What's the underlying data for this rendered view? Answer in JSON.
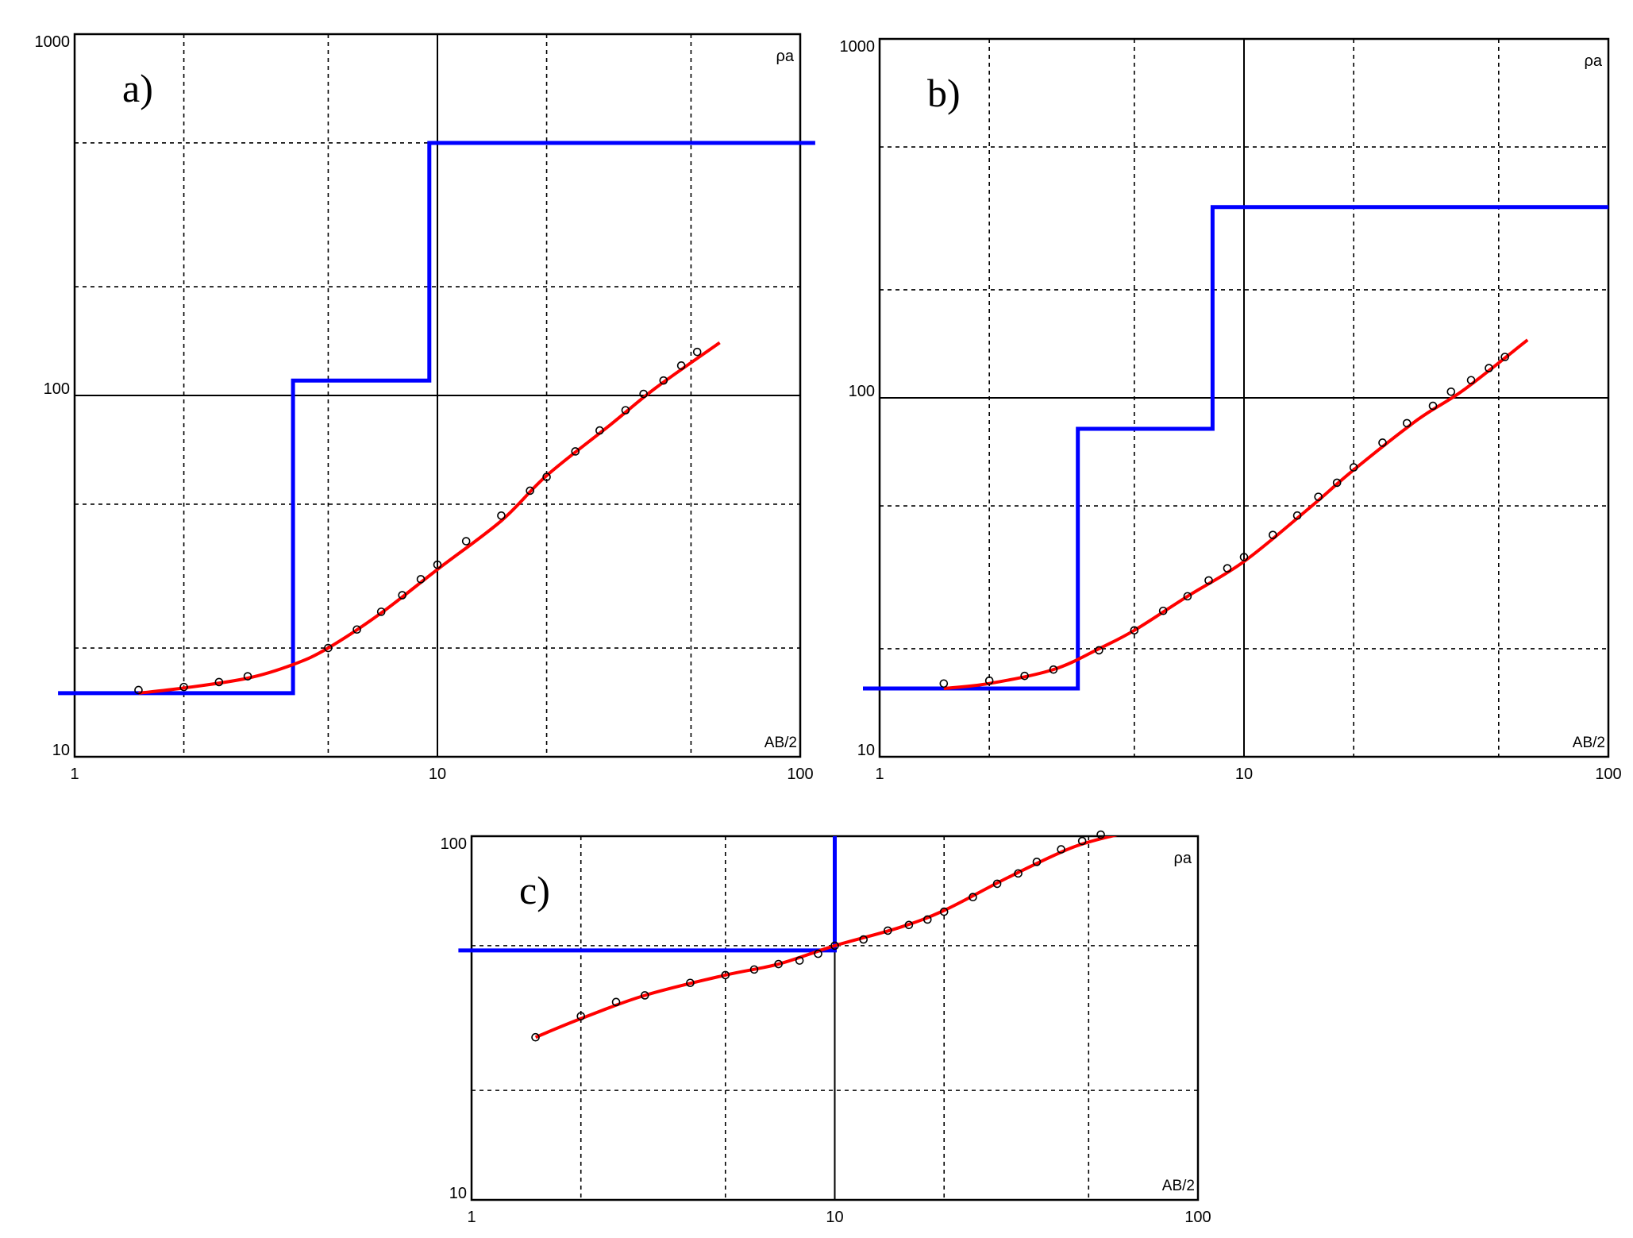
{
  "chart_data": [
    {
      "type": "line",
      "panel_label": "a)",
      "xlabel": "AB/2",
      "ylabel": "ρa",
      "x_scale": "log",
      "y_scale": "log",
      "xlim": [
        1,
        100
      ],
      "ylim": [
        10,
        1000
      ],
      "x_ticks": [
        "1",
        "10",
        "100"
      ],
      "y_ticks": [
        "10",
        "100",
        "1000"
      ],
      "grid": true,
      "model": {
        "name": "",
        "x": [
          0.9,
          4.0,
          4.0,
          9.5,
          9.5,
          110
        ],
        "y": [
          15,
          15,
          110,
          110,
          500,
          500
        ],
        "color": "#0000ff"
      },
      "fit": {
        "x": [
          1.5,
          2,
          3,
          4,
          5,
          7,
          10,
          15,
          20,
          30,
          40,
          60
        ],
        "y": [
          15,
          15.5,
          16.5,
          18,
          20,
          25,
          33,
          45,
          60,
          83,
          105,
          140
        ],
        "color": "#ff0000"
      },
      "observed": {
        "x": [
          1.5,
          2,
          2.5,
          3,
          5,
          6,
          7,
          8,
          9,
          10,
          12,
          15,
          18,
          20,
          24,
          28,
          33,
          37,
          42,
          47,
          52
        ],
        "y": [
          15.3,
          15.6,
          16.1,
          16.7,
          20,
          22.5,
          25.2,
          28,
          31,
          34,
          39.5,
          46.5,
          54.5,
          59.5,
          70,
          80,
          91,
          101,
          110,
          121,
          132
        ]
      }
    },
    {
      "type": "line",
      "panel_label": "b)",
      "xlabel": "AB/2",
      "ylabel": "ρa",
      "x_scale": "log",
      "y_scale": "log",
      "xlim": [
        1,
        100
      ],
      "ylim": [
        10,
        1000
      ],
      "x_ticks": [
        "1",
        "10",
        "100"
      ],
      "y_ticks": [
        "10",
        "100",
        "1000"
      ],
      "grid": true,
      "model": {
        "name": "",
        "x": [
          0.9,
          3.5,
          3.5,
          8.2,
          8.2,
          105
        ],
        "y": [
          15.5,
          15.5,
          82,
          82,
          340,
          340
        ],
        "color": "#0000ff"
      },
      "fit": {
        "x": [
          1.5,
          2,
          3,
          4,
          5,
          7,
          10,
          15,
          20,
          30,
          40,
          60
        ],
        "y": [
          15.5,
          16,
          17.5,
          20,
          22.5,
          28,
          35,
          49,
          63,
          87,
          105,
          145
        ],
        "color": "#ff0000"
      },
      "observed": {
        "x": [
          1.5,
          2,
          2.5,
          3,
          4,
          5,
          6,
          7,
          8,
          9,
          10,
          12,
          14,
          16,
          18,
          20,
          24,
          28,
          33,
          37,
          42,
          47,
          52
        ],
        "y": [
          16,
          16.3,
          16.8,
          17.5,
          19.8,
          22.5,
          25.5,
          28,
          31,
          33.5,
          36,
          41.5,
          47,
          53,
          58,
          64,
          75,
          85,
          95,
          104,
          112,
          121,
          130
        ]
      }
    },
    {
      "type": "line",
      "panel_label": "c)",
      "xlabel": "AB/2",
      "ylabel": "ρa",
      "x_scale": "log",
      "y_scale": "log",
      "xlim": [
        1,
        100
      ],
      "ylim": [
        10,
        100
      ],
      "x_ticks": [
        "1",
        "10",
        "100"
      ],
      "y_ticks": [
        "10",
        "100"
      ],
      "grid": true,
      "model": {
        "name": "",
        "x": [
          0.92,
          10,
          10
        ],
        "y": [
          48.5,
          48.5,
          105
        ],
        "color": "#0000ff"
      },
      "fit": {
        "x": [
          1.5,
          2,
          3,
          5,
          7,
          10,
          15,
          20,
          30,
          45,
          60
        ],
        "y": [
          28,
          31.5,
          36.5,
          41.5,
          44.5,
          50,
          56,
          62.5,
          77,
          93,
          101
        ],
        "color": "#ff0000"
      },
      "observed": {
        "x": [
          1.5,
          2,
          2.5,
          3,
          4,
          5,
          6,
          7,
          8,
          9,
          10,
          12,
          14,
          16,
          18,
          20,
          24,
          28,
          32,
          36,
          42,
          48,
          54
        ],
        "y": [
          28,
          32,
          35,
          36.5,
          39.5,
          41.5,
          43,
          44.5,
          45.5,
          47.5,
          50,
          52,
          55,
          57,
          59,
          62,
          68,
          74,
          79,
          85,
          92,
          97,
          101
        ]
      }
    }
  ]
}
